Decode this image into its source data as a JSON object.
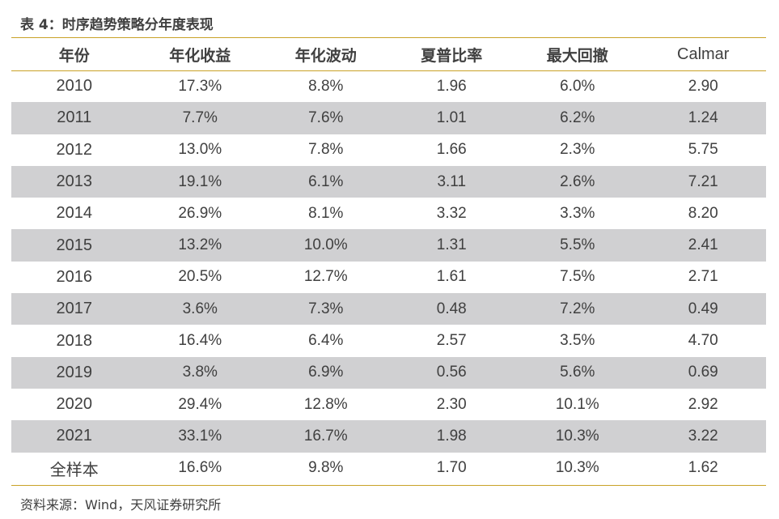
{
  "title": "表 4：时序趋势策略分年度表现",
  "headers": [
    "年份",
    "年化收益",
    "年化波动",
    "夏普比率",
    "最大回撤",
    "Calmar"
  ],
  "rows": [
    [
      "2010",
      "17.3%",
      "8.8%",
      "1.96",
      "6.0%",
      "2.90"
    ],
    [
      "2011",
      "7.7%",
      "7.6%",
      "1.01",
      "6.2%",
      "1.24"
    ],
    [
      "2012",
      "13.0%",
      "7.8%",
      "1.66",
      "2.3%",
      "5.75"
    ],
    [
      "2013",
      "19.1%",
      "6.1%",
      "3.11",
      "2.6%",
      "7.21"
    ],
    [
      "2014",
      "26.9%",
      "8.1%",
      "3.32",
      "3.3%",
      "8.20"
    ],
    [
      "2015",
      "13.2%",
      "10.0%",
      "1.31",
      "5.5%",
      "2.41"
    ],
    [
      "2016",
      "20.5%",
      "12.7%",
      "1.61",
      "7.5%",
      "2.71"
    ],
    [
      "2017",
      "3.6%",
      "7.3%",
      "0.48",
      "7.2%",
      "0.49"
    ],
    [
      "2018",
      "16.4%",
      "6.4%",
      "2.57",
      "3.5%",
      "4.70"
    ],
    [
      "2019",
      "3.8%",
      "6.9%",
      "0.56",
      "5.6%",
      "0.69"
    ],
    [
      "2020",
      "29.4%",
      "12.8%",
      "2.30",
      "10.1%",
      "2.92"
    ],
    [
      "2021",
      "33.1%",
      "16.7%",
      "1.98",
      "10.3%",
      "3.22"
    ],
    [
      "全样本",
      "16.6%",
      "9.8%",
      "1.70",
      "10.3%",
      "1.62"
    ]
  ],
  "source": "资料来源：Wind，天风证券研究所",
  "colors": {
    "rule": "#c9a227",
    "stripe": "#d0d0d2",
    "text": "#404040"
  }
}
